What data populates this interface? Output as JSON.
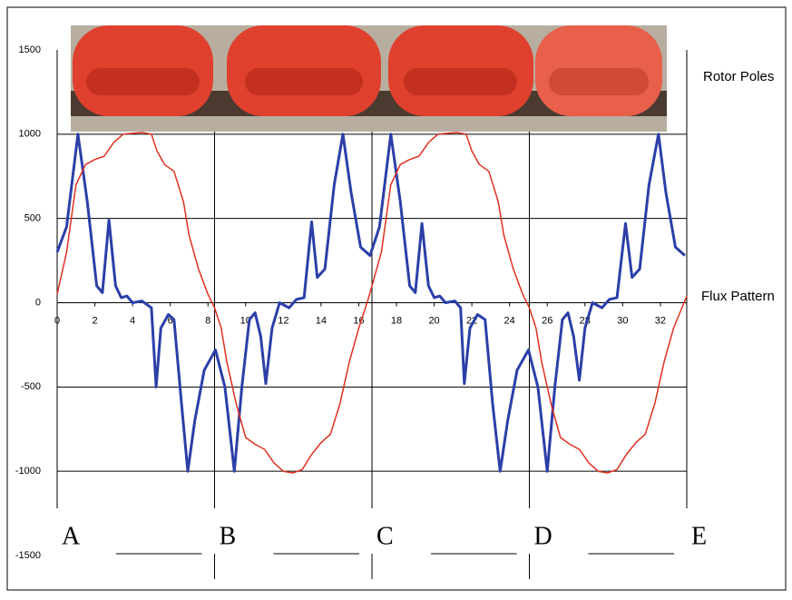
{
  "chart_data": {
    "type": "line",
    "photo_label": "Rotor Poles",
    "curve_label": "Flux Pattern",
    "xlim": [
      0,
      33.4
    ],
    "ylim": [
      -1500,
      1500
    ],
    "xticks": [
      0,
      2,
      4,
      6,
      8,
      10,
      12,
      14,
      16,
      18,
      20,
      22,
      24,
      26,
      28,
      30,
      32
    ],
    "yticks": [
      -1500,
      -1000,
      -500,
      0,
      500,
      1000,
      1500
    ],
    "grid": true,
    "sections": [
      {
        "label": "A",
        "x": 0
      },
      {
        "label": "B",
        "x": 8.35
      },
      {
        "label": "C",
        "x": 16.7
      },
      {
        "label": "D",
        "x": 25.05
      },
      {
        "label": "E",
        "x": 33.4
      }
    ],
    "series": [
      {
        "color": "#2b3fa8",
        "width": 3,
        "x": [
          0,
          0.5,
          1.1,
          1.6,
          2.1,
          2.4,
          2.75,
          3.1,
          3.4,
          3.7,
          4.0,
          4.5,
          5.0,
          5.25,
          5.5,
          5.9,
          6.2,
          6.6,
          6.93,
          7.3,
          7.8,
          8.4,
          8.9,
          9.4,
          9.8,
          10.2,
          10.5,
          10.8,
          11.07,
          11.4,
          11.8,
          12.3,
          12.7,
          13.1,
          13.5,
          13.8,
          14.2,
          14.7,
          15.16,
          15.6,
          16.1,
          16.6,
          17.1,
          17.7,
          18.2,
          18.7,
          19.0,
          19.35,
          19.7,
          20.0,
          20.3,
          20.6,
          21.1,
          21.4,
          21.6,
          21.9,
          22.3,
          22.7,
          23.1,
          23.5,
          23.9,
          24.4,
          25.0,
          25.5,
          26.0,
          26.4,
          26.8,
          27.1,
          27.4,
          27.7,
          28.0,
          28.4,
          28.9,
          29.3,
          29.7,
          30.15,
          30.5,
          30.9,
          31.4,
          31.9,
          32.3,
          32.8,
          33.3
        ],
        "values": [
          300,
          450,
          1000,
          600,
          100,
          60,
          490,
          100,
          30,
          40,
          0,
          10,
          -30,
          -500,
          -150,
          -70,
          -100,
          -600,
          -1000,
          -700,
          -400,
          -280,
          -500,
          -1000,
          -500,
          -100,
          -60,
          -200,
          -480,
          -150,
          0,
          -30,
          20,
          30,
          480,
          150,
          200,
          700,
          1000,
          650,
          330,
          280,
          450,
          1000,
          600,
          100,
          60,
          470,
          100,
          30,
          40,
          0,
          10,
          -30,
          -480,
          -150,
          -70,
          -100,
          -600,
          -1000,
          -700,
          -400,
          -280,
          -500,
          -1000,
          -500,
          -100,
          -60,
          -200,
          -460,
          -150,
          0,
          -30,
          20,
          30,
          470,
          150,
          200,
          700,
          1000,
          650,
          330,
          280
        ]
      },
      {
        "color": "#e03020",
        "width": 1.5,
        "x": [
          0,
          0.5,
          1,
          1.5,
          2,
          2.5,
          3,
          3.5,
          4.5,
          5,
          5.3,
          5.7,
          6.2,
          6.7,
          7,
          7.5,
          8,
          8.35,
          8.7,
          9,
          9.5,
          10,
          10.5,
          11,
          11.5,
          12,
          12.5,
          13,
          13.5,
          14,
          14.5,
          15,
          15.5,
          16,
          16.5,
          17.2,
          17.7,
          18.2,
          18.7,
          19.2,
          19.7,
          20.2,
          21.2,
          21.7,
          22,
          22.4,
          22.9,
          23.4,
          23.7,
          24.2,
          24.7,
          25.05,
          25.4,
          25.7,
          26.2,
          26.7,
          27.2,
          27.7,
          28.2,
          28.7,
          29.2,
          29.7,
          30.2,
          30.7,
          31.2,
          31.7,
          32.2,
          32.7,
          33.4
        ],
        "values": [
          50,
          300,
          700,
          820,
          850,
          870,
          950,
          1000,
          1010,
          1000,
          900,
          820,
          780,
          600,
          400,
          200,
          50,
          -30,
          -150,
          -350,
          -600,
          -800,
          -840,
          -870,
          -950,
          -1000,
          -1010,
          -990,
          -900,
          -830,
          -780,
          -600,
          -350,
          -150,
          20,
          300,
          700,
          820,
          850,
          870,
          950,
          1000,
          1010,
          1000,
          900,
          820,
          780,
          600,
          400,
          200,
          50,
          -30,
          -150,
          -350,
          -600,
          -800,
          -840,
          -870,
          -950,
          -1000,
          -1010,
          -990,
          -900,
          -830,
          -780,
          -600,
          -350,
          -150,
          40
        ]
      }
    ]
  }
}
